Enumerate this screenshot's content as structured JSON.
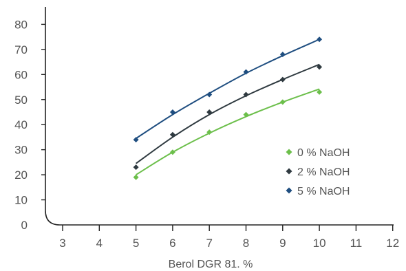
{
  "chart_data": {
    "type": "scatter",
    "title": "",
    "xlabel": "Berol DGR 81. %",
    "ylabel": "",
    "x_ticks": [
      "3",
      "4",
      "5",
      "6",
      "7",
      "8",
      "9",
      "10",
      "11",
      "12"
    ],
    "y_ticks": [
      "0",
      "10",
      "20",
      "30",
      "40",
      "50",
      "60",
      "70",
      "80"
    ],
    "xlim": [
      2.5,
      12.3
    ],
    "ylim": [
      0,
      85
    ],
    "grid": false,
    "legend_position": "right-middle",
    "series": [
      {
        "name": "0 % NaOH",
        "color": "#6cbf4b",
        "x": [
          5,
          6,
          7,
          8,
          9,
          10
        ],
        "y": [
          19,
          29,
          37,
          44,
          49,
          53
        ],
        "fit": [
          [
            5,
            20
          ],
          [
            6,
            29
          ],
          [
            7,
            36.6
          ],
          [
            8,
            43.2
          ],
          [
            9,
            49
          ],
          [
            10,
            54.2
          ]
        ]
      },
      {
        "name": "2 % NaOH",
        "color": "#2f3a40",
        "x": [
          5,
          6,
          7,
          8,
          9,
          10
        ],
        "y": [
          23,
          36,
          45,
          52,
          58,
          63
        ],
        "fit": [
          [
            5,
            24.5
          ],
          [
            6,
            35
          ],
          [
            7,
            44
          ],
          [
            8,
            51.5
          ],
          [
            9,
            58
          ],
          [
            10,
            64
          ]
        ]
      },
      {
        "name": "5 % NaOH",
        "color": "#1f4e80",
        "x": [
          5,
          6,
          7,
          8,
          9,
          10
        ],
        "y": [
          34,
          45,
          52,
          61,
          68,
          74
        ],
        "fit": [
          [
            5,
            34.5
          ],
          [
            6,
            44
          ],
          [
            7,
            52.5
          ],
          [
            8,
            60.5
          ],
          [
            9,
            67.5
          ],
          [
            10,
            74
          ]
        ]
      }
    ]
  }
}
